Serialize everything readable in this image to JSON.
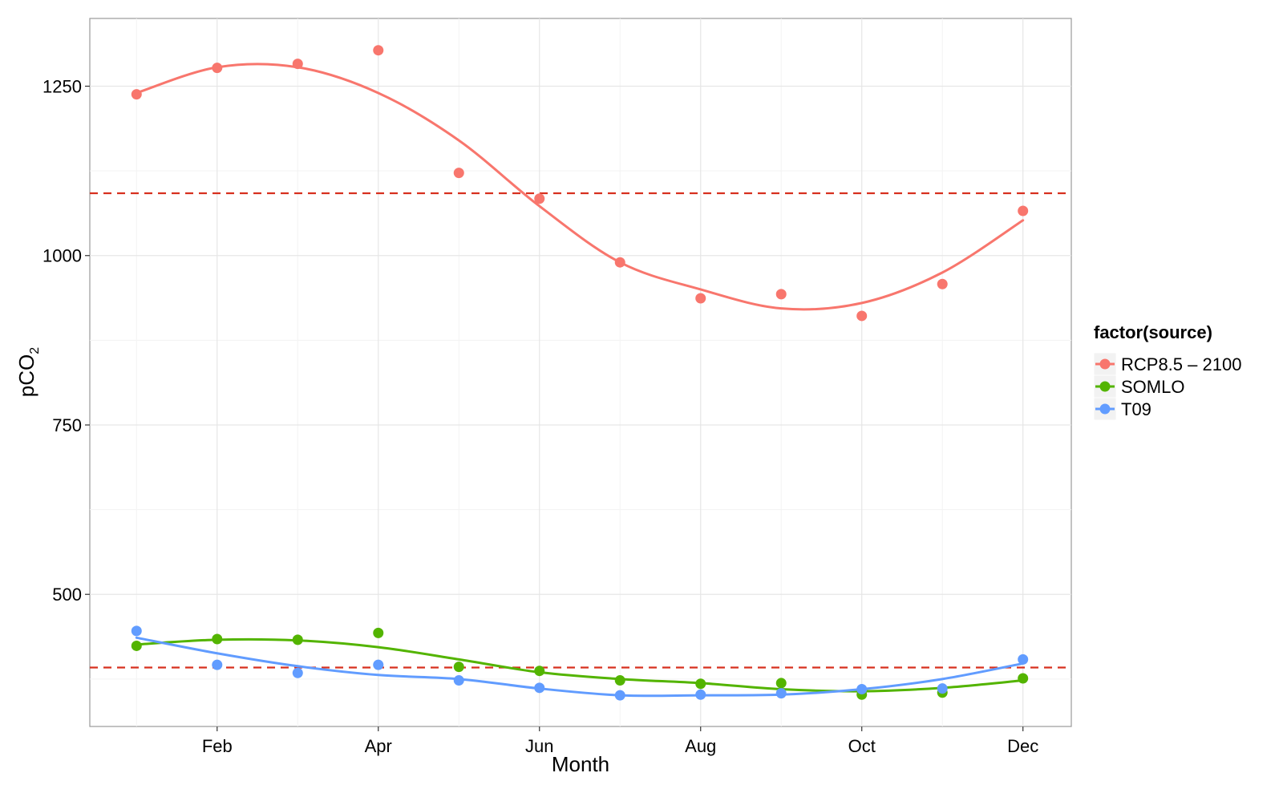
{
  "chart_data": {
    "type": "scatter",
    "title": "",
    "xlabel": "Month",
    "ylabel": "pCO",
    "ylabel_subscript": "2",
    "x_ticks": [
      {
        "label": "Feb",
        "value": 2
      },
      {
        "label": "Apr",
        "value": 4
      },
      {
        "label": "Jun",
        "value": 6
      },
      {
        "label": "Aug",
        "value": 8
      },
      {
        "label": "Oct",
        "value": 10
      },
      {
        "label": "Dec",
        "value": 12
      }
    ],
    "y_ticks": [
      500,
      750,
      1000,
      1250
    ],
    "xlim": [
      0.42,
      12.6
    ],
    "ylim": [
      305,
      1350
    ],
    "grid": true,
    "legend_title": "factor(source)",
    "legend_position": "right",
    "series": [
      {
        "name": "RCP8.5 – 2100",
        "color": "#F8766D",
        "x": [
          1,
          2,
          3,
          4,
          5,
          6,
          7,
          8,
          9,
          10,
          11,
          12
        ],
        "values": [
          1238,
          1277,
          1283,
          1303,
          1122,
          1084,
          990,
          937,
          943,
          911,
          958,
          1066
        ],
        "smooth": [
          1240,
          1278,
          1278,
          1240,
          1170,
          1073,
          990,
          950,
          922,
          930,
          975,
          1052
        ]
      },
      {
        "name": "SOMLO",
        "color": "#53B400",
        "x": [
          1,
          2,
          3,
          4,
          5,
          6,
          7,
          8,
          9,
          10,
          11,
          12
        ],
        "values": [
          424,
          434,
          433,
          443,
          393,
          387,
          373,
          368,
          369,
          352,
          355,
          376
        ],
        "smooth": [
          426,
          433,
          432,
          422,
          404,
          385,
          375,
          369,
          360,
          357,
          362,
          373
        ]
      },
      {
        "name": "T09",
        "color": "#619CFF",
        "x": [
          1,
          2,
          3,
          4,
          5,
          6,
          7,
          8,
          9,
          10,
          11,
          12
        ],
        "values": [
          446,
          396,
          384,
          396,
          373,
          362,
          351,
          352,
          354,
          360,
          361,
          404
        ],
        "smooth": [
          436,
          413,
          394,
          381,
          375,
          361,
          351,
          351,
          352,
          360,
          375,
          398
        ]
      }
    ],
    "reference_lines": [
      {
        "y": 1092,
        "color": "#D7301F",
        "style": "dashed"
      },
      {
        "y": 392,
        "color": "#D7301F",
        "style": "dashed"
      }
    ]
  }
}
